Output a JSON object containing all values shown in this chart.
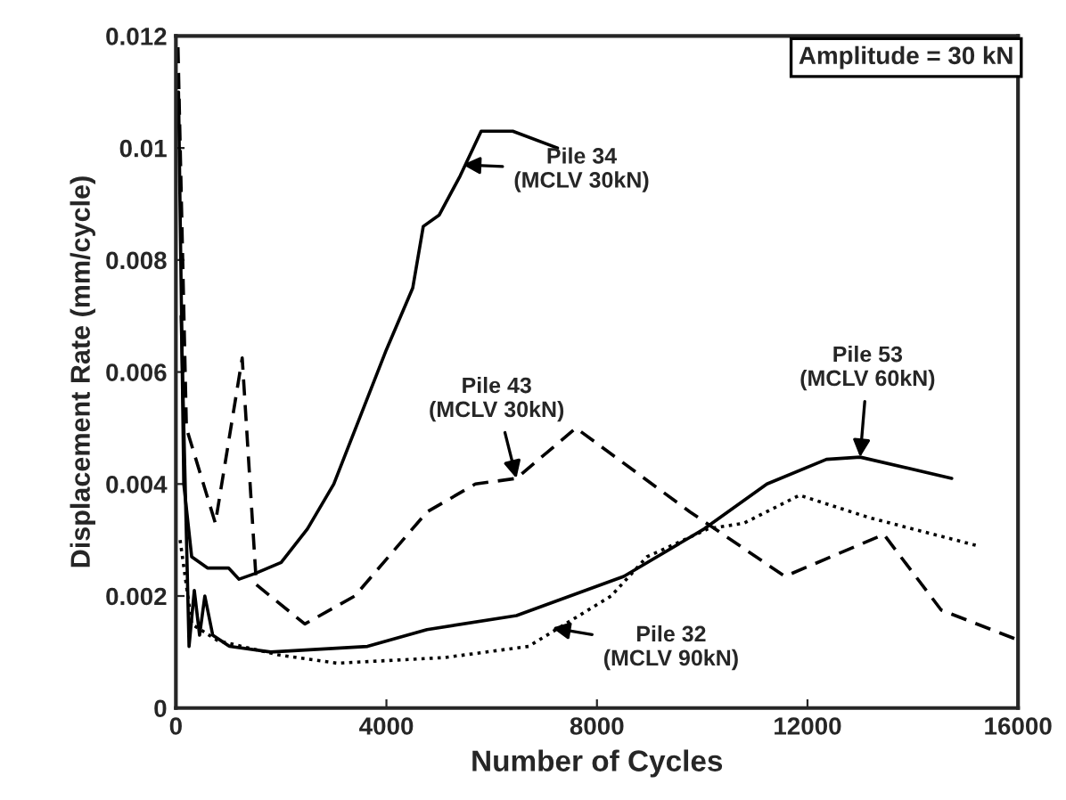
{
  "chart_data": {
    "type": "line",
    "xlabel": "Number of Cycles",
    "ylabel": "Displacement Rate (mm/cycle)",
    "xlim": [
      0,
      16000
    ],
    "ylim": [
      0,
      0.012
    ],
    "xticks": [
      0,
      4000,
      8000,
      12000,
      16000
    ],
    "yticks": [
      0,
      0.002,
      0.004,
      0.006,
      0.008,
      {
        "value": 0.01,
        "label": "0.01"
      },
      0.012
    ],
    "grid": false,
    "legend": false,
    "marker": "none",
    "series": [
      {
        "color": "#000000",
        "line_style": "solid",
        "x": [
          50,
          150,
          300,
          600,
          1000,
          1200,
          1500,
          2000,
          2500,
          3000,
          3500,
          4000,
          4500,
          4700,
          5000,
          5400,
          5800,
          6400,
          7250
        ],
        "values": [
          0.011,
          0.004,
          0.0027,
          0.0025,
          0.0025,
          0.0023,
          0.0024,
          0.0026,
          0.0032,
          0.004,
          0.0052,
          0.0064,
          0.0075,
          0.0086,
          0.0088,
          0.0095,
          0.0103,
          0.0103,
          0.01
        ]
      },
      {
        "color": "#000000",
        "line_style": "dashed",
        "x": [
          40,
          200,
          750,
          1260,
          1530,
          2450,
          3400,
          4770,
          5690,
          6470,
          7600,
          9770,
          11570,
          13450,
          14540,
          15930
        ],
        "values": [
          0.0118,
          0.005,
          0.0033,
          0.00625,
          0.0022,
          0.0015,
          0.002,
          0.0035,
          0.004,
          0.0041,
          0.005,
          0.0035,
          0.00235,
          0.0031,
          0.00175,
          0.00124
        ]
      },
      {
        "color": "#000000",
        "line_style": "solid",
        "x": [
          100,
          250,
          350,
          450,
          550,
          700,
          1020,
          1800,
          3640,
          4770,
          6470,
          8510,
          10040,
          11230,
          12360,
          13000,
          14740
        ],
        "values": [
          0.007,
          0.0011,
          0.0021,
          0.0013,
          0.002,
          0.0013,
          0.0011,
          0.001,
          0.0011,
          0.0014,
          0.00165,
          0.00235,
          0.0032,
          0.004,
          0.00444,
          0.00448,
          0.0041
        ]
      },
      {
        "color": "#000000",
        "line_style": "dotted",
        "x": [
          80,
          300,
          800,
          1940,
          3060,
          5100,
          6700,
          8270,
          8950,
          10110,
          10790,
          11850,
          13170,
          15220
        ],
        "values": [
          0.003,
          0.0015,
          0.0012,
          0.00095,
          0.0008,
          0.0009,
          0.0011,
          0.002,
          0.0027,
          0.0032,
          0.0033,
          0.0038,
          0.0034,
          0.0029
        ]
      }
    ],
    "annotations": [
      {
        "text": "Pile 34\n(MCLV 30kN)",
        "x": 5450,
        "y": 0.0097
      },
      {
        "text": "Pile 43\n(MCLV 30kN)",
        "x": 6470,
        "y": 0.0041
      },
      {
        "text": "Pile 53\n(MCLV 60kN)",
        "x": 13000,
        "y": 0.00448
      },
      {
        "text": "Pile 32\n(MCLV 90kN)",
        "x": 7150,
        "y": 0.00143
      },
      "Amplitude = 30 kN"
    ]
  }
}
